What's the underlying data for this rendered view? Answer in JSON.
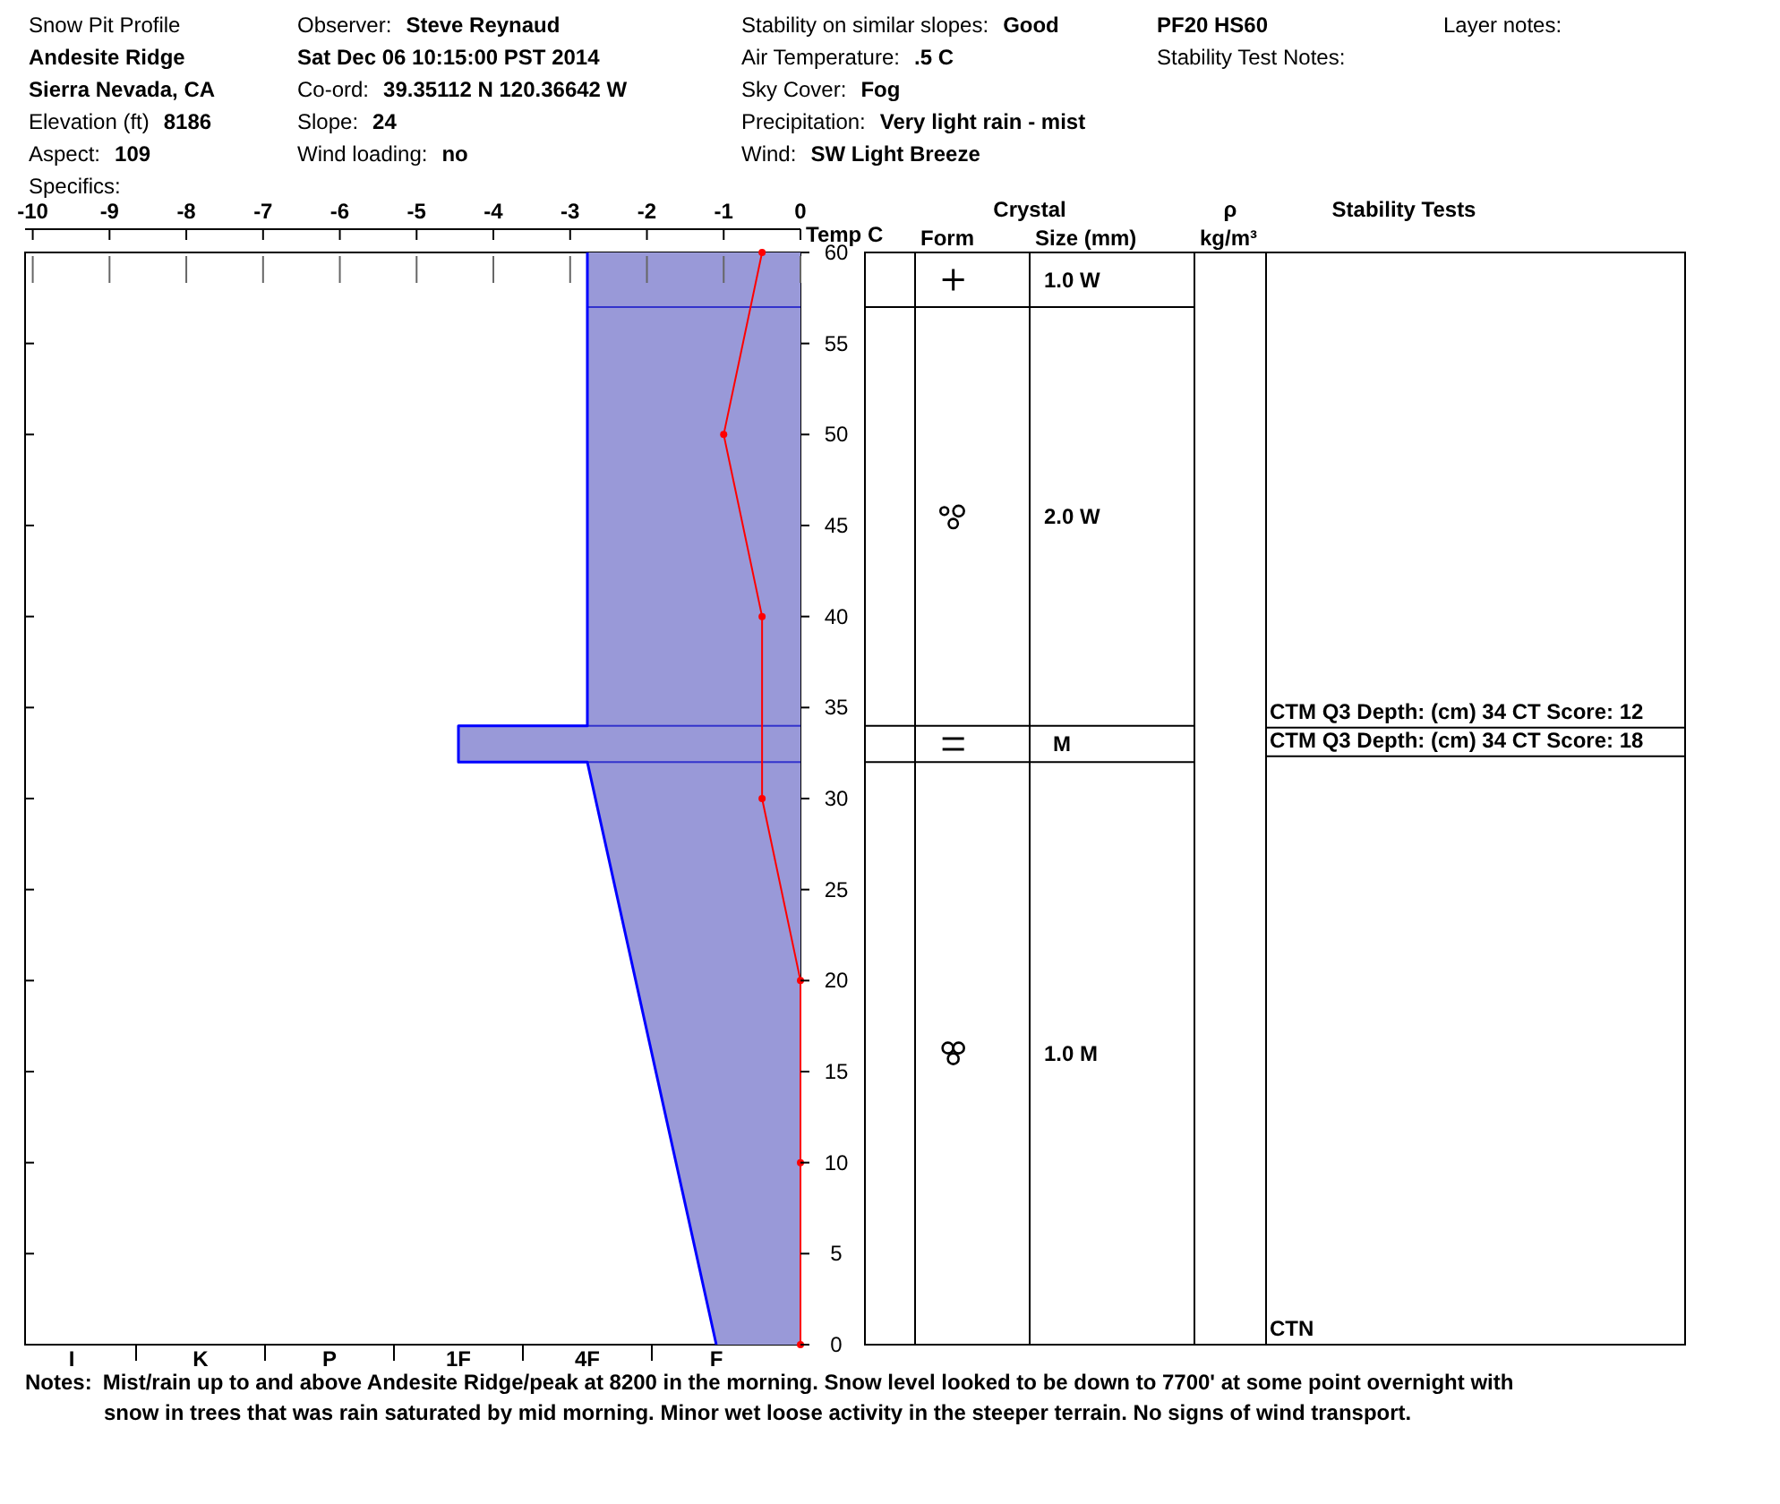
{
  "chart_data": [
    {
      "type": "line",
      "title": "Snow Pit Profile",
      "x2label": "Temp C",
      "categories": [
        "I",
        "K",
        "P",
        "1F",
        "4F",
        "F"
      ],
      "x2lim": [
        -10.1,
        0
      ],
      "x2ticks": [
        -10,
        -9,
        -8,
        -7,
        -6,
        -5,
        -4,
        -3,
        -2,
        -1,
        0
      ],
      "ylim": [
        0,
        60
      ],
      "yticks": [
        0,
        5,
        10,
        15,
        20,
        25,
        30,
        35,
        40,
        45,
        50,
        55,
        60
      ],
      "ref_lines": [
        {
          "axis": "y",
          "value": 57,
          "color": "#3333cc"
        },
        {
          "axis": "y",
          "value": 34,
          "color": "#3333cc"
        },
        {
          "axis": "y",
          "value": 32,
          "color": "#3333cc"
        }
      ],
      "series": [
        {
          "type": "line",
          "color": "#0000ff",
          "x": [
            "F",
            "4F",
            "1F",
            "1F",
            "4F",
            "4F"
          ],
          "values": [
            0,
            32,
            32,
            34,
            34,
            60
          ]
        },
        {
          "type": "line",
          "axis": "x2",
          "color": "#ff0000",
          "marker": "circle",
          "x": [
            0,
            0,
            0,
            -0.5,
            -0.5,
            -1,
            -0.5
          ],
          "values": [
            0,
            10,
            20,
            30,
            40,
            50,
            60
          ]
        }
      ],
      "annotations": [
        "Andesite Ridge",
        "Sierra Nevada, CA",
        "Elevation (ft)  8186",
        "Aspect:  109",
        "Specifics:",
        "Observer:  Steve Reynaud",
        "Sat Dec 06 10:15:00 PST 2014",
        "Co-ord:  39.35112 N 120.36642 W",
        "Slope:  24",
        "Wind loading:  no",
        "Stability on similar slopes:  Good",
        "Air Temperature:  .5 C",
        "Sky Cover:  Fog",
        "Precipitation:  Very light rain - mist",
        "Wind:  SW Light Breeze",
        "PF20 HS60",
        "Stability Test Notes:",
        "Layer notes:",
        "Notes:  Mist/rain up to and above Andesite Ridge/peak at 8200 in the morning.  Snow level looked to be down to 7700' at some point overnight with snow in trees that was rain saturated by mid morning.  Minor wet loose activity in the steeper terrain.  No signs of wind transport."
      ]
    },
    {
      "type": "other",
      "categories": [
        null,
        "Form",
        "Size (mm)",
        "kg/m³",
        "Stability Tests"
      ],
      "annotations": [
        "Crystal",
        "ρ",
        "1.0 W",
        "2.0 W",
        "M",
        "1.0 M",
        "CTM Q3 Depth: (cm) 34 CT Score: 12",
        "CTM Q3 Depth: (cm) 34 CT Score: 18",
        "CTN"
      ]
    }
  ]
}
